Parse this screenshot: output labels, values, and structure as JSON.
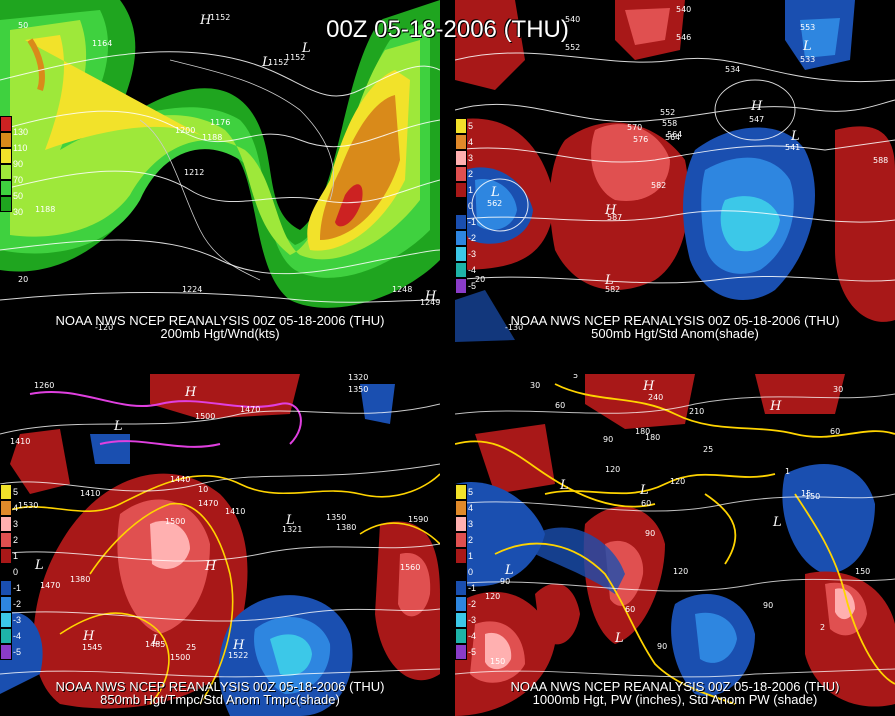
{
  "main_title": "00Z 05-18-2006 (THU)",
  "panels": [
    {
      "line1": "NOAA NWS NCEP REANALYSIS 00Z 05-18-2006 (THU)",
      "line2": "200mb Hgt/Wnd(kts)",
      "legend": [
        "130",
        "110",
        "90",
        "70",
        "50",
        "30"
      ],
      "legend_colors": [
        "#cc2222",
        "#d98a1a",
        "#f2e22a",
        "#9ee83a",
        "#3fd13f",
        "#1fa51f"
      ],
      "contours": [
        "1152",
        "1164",
        "1152",
        "1152",
        "1176",
        "1200",
        "1188",
        "1212",
        "1188",
        "1224",
        "1248",
        "1249"
      ],
      "axis": [
        "50",
        "20",
        "-120"
      ]
    },
    {
      "line1": "NOAA NWS NCEP REANALYSIS 00Z 05-18-2006 (THU)",
      "line2": "500mb Hgt/Std Anom(shade)",
      "legend": [
        "5",
        "4",
        "3",
        "2",
        "1",
        "0",
        "-1",
        "-2",
        "-3",
        "-4",
        "-5"
      ],
      "legend_colors": [
        "#f2e22a",
        "#e08a2a",
        "#ffb0b0",
        "#e05050",
        "#a81818",
        "#000000",
        "#1a4fb0",
        "#2e86e0",
        "#3cc8e8",
        "#1eb3a8",
        "#8a3cc8"
      ],
      "contours": [
        "540",
        "546",
        "552",
        "540",
        "534",
        "570",
        "576",
        "582",
        "564",
        "552",
        "558",
        "564",
        "588",
        "587",
        "582",
        "541",
        "547",
        "553",
        "533",
        "562"
      ],
      "axis": [
        "-130",
        "20"
      ]
    },
    {
      "line1": "NOAA NWS NCEP REANALYSIS 00Z 05-18-2006 (THU)",
      "line2": "850mb Hgt/Tmpc/Std Anom Tmpc(shade)",
      "legend": [
        "5",
        "4",
        "3",
        "2",
        "1",
        "0",
        "-1",
        "-2",
        "-3",
        "-4",
        "-5"
      ],
      "legend_colors": [
        "#f2e22a",
        "#e08a2a",
        "#ffb0b0",
        "#e05050",
        "#a81818",
        "#000000",
        "#1a4fb0",
        "#2e86e0",
        "#3cc8e8",
        "#1eb3a8",
        "#8a3cc8"
      ],
      "contours": [
        "1260",
        "1350",
        "1320",
        "1410",
        "1500",
        "1470",
        "1440",
        "1470",
        "1410",
        "1350",
        "1380",
        "1530",
        "1500",
        "1590",
        "1560",
        "1545",
        "1500",
        "1485",
        "1522",
        "1410",
        "1380",
        "1470",
        "1321",
        "25",
        "10"
      ],
      "axis": []
    },
    {
      "line1": "NOAA NWS NCEP REANALYSIS 00Z 05-18-2006 (THU)",
      "line2": "1000mb Hgt, PW (inches), Std Anom PW (shade)",
      "legend": [
        "5",
        "4",
        "3",
        "2",
        "1",
        "0",
        "-1",
        "-2",
        "-3",
        "-4",
        "-5"
      ],
      "legend_colors": [
        "#f2e22a",
        "#e08a2a",
        "#ffb0b0",
        "#e05050",
        "#a81818",
        "#000000",
        "#1a4fb0",
        "#2e86e0",
        "#3cc8e8",
        "#1eb3a8",
        "#8a3cc8"
      ],
      "contours": [
        "30",
        "60",
        "90",
        "120",
        "150",
        "180",
        "210",
        "240",
        "60",
        "90",
        "120",
        "120",
        "150",
        "90",
        "60",
        "30",
        "90",
        "120",
        "60",
        "90",
        "150",
        "180",
        "25",
        "15",
        "5",
        "2",
        "1"
      ],
      "axis": []
    }
  ]
}
